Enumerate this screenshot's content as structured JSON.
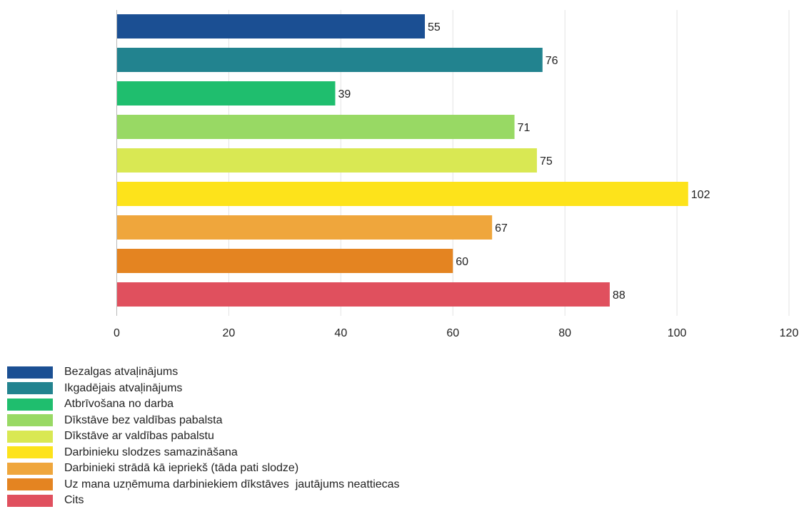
{
  "chart_data": {
    "type": "bar",
    "orientation": "horizontal",
    "xlim": [
      0,
      120
    ],
    "x_ticks": [
      "0",
      "20",
      "40",
      "60",
      "80",
      "100",
      "120"
    ],
    "grid": "vertical",
    "legend_position": "bottom-left",
    "series": [
      {
        "name": "Bezalgas atvaļinājums",
        "value": 55,
        "value_label": "55",
        "color": "#1b4f93"
      },
      {
        "name": "Ikgadējais atvaļinājums",
        "value": 76,
        "value_label": "76",
        "color": "#22838f"
      },
      {
        "name": "Atbrīvošana no darba",
        "value": 39,
        "value_label": "39",
        "color": "#1fbe6e"
      },
      {
        "name": "Dīkstāve bez valdības pabalsta",
        "value": 71,
        "value_label": "71",
        "color": "#98d964"
      },
      {
        "name": "Dīkstāve ar valdības pabalstu",
        "value": 75,
        "value_label": "75",
        "color": "#d9e853"
      },
      {
        "name": "Darbinieku slodzes samazināšana",
        "value": 102,
        "value_label": "102",
        "color": "#fde31b"
      },
      {
        "name": "Darbinieki strādā kā iepriekš (tāda pati slodze)",
        "value": 67,
        "value_label": "67",
        "color": "#efa63c"
      },
      {
        "name": "Uz mana uzņēmuma darbiniekiem dīkstāves  jautājums neattiecas",
        "value": 60,
        "value_label": "60",
        "color": "#e48421"
      },
      {
        "name": "Cits",
        "value": 88,
        "value_label": "88",
        "color": "#e0505e"
      }
    ]
  }
}
